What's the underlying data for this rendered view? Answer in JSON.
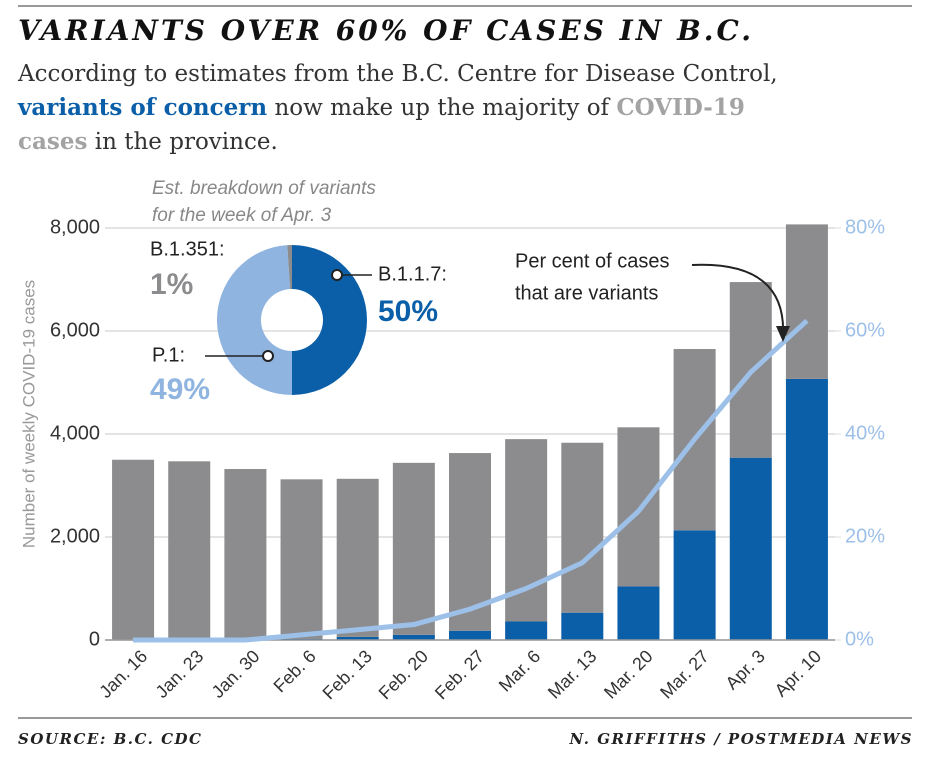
{
  "title": "VARIANTS OVER 60% OF CASES IN B.C.",
  "subtitle": [
    "According to estimates from the B.C. Centre for Disease Control,",
    "variants of concern",
    "now make up the majority of",
    "COVID-19",
    "cases",
    "in the province."
  ],
  "source": "SOURCE: B.C. CDC",
  "credit": "N. GRIFFITHS / POSTMEDIA NEWS",
  "chart_data": [
    {
      "type": "bar",
      "stacked": true,
      "grid": true,
      "y_label": "Number of weekly COVID-19 cases",
      "annotation": [
        "Per cent of cases",
        "that are variants"
      ],
      "categories": [
        "Jan. 16",
        "Jan. 23",
        "Jan. 30",
        "Feb. 6",
        "Feb. 13",
        "Feb. 20",
        "Feb. 27",
        "Mar. 6",
        "Mar. 13",
        "Mar. 20",
        "Mar. 27",
        "Apr. 3",
        "Apr. 10"
      ],
      "series": [
        {
          "color": "#0b5ea8",
          "values": [
            0,
            0,
            0,
            20,
            60,
            100,
            180,
            360,
            530,
            1040,
            2130,
            3540,
            5070
          ]
        },
        {
          "color": "#8c8c8e",
          "values": [
            3500,
            3470,
            3320,
            3100,
            3070,
            3340,
            3450,
            3540,
            3300,
            3090,
            3520,
            3410,
            3000
          ]
        },
        {
          "type": "line",
          "axis": "y2",
          "color": "#9dc0e8",
          "values": [
            0,
            0,
            0,
            1,
            2,
            3,
            6,
            10,
            15,
            25,
            39,
            52,
            62
          ]
        }
      ],
      "ylim": [
        0,
        8000
      ],
      "yticks": [
        0,
        {
          "value": 2000,
          "label": "2,000"
        },
        {
          "value": 4000,
          "label": "4,000"
        },
        {
          "value": 6000,
          "label": "6,000"
        },
        {
          "value": 8000,
          "label": "8,000"
        }
      ],
      "y2lim": [
        0,
        80
      ],
      "y2ticks": [
        {
          "value": 0,
          "label": "0%"
        },
        {
          "value": 20,
          "label": "20%"
        },
        {
          "value": 40,
          "label": "40%"
        },
        {
          "value": 60,
          "label": "60%"
        },
        {
          "value": 80,
          "label": "80%"
        }
      ]
    },
    {
      "type": "pie",
      "title": [
        "Est. breakdown of variants",
        "for the week of Apr. 3"
      ],
      "categories": [
        "B.1.1.7:",
        "P.1:",
        "B.1.351:"
      ],
      "values": [
        50,
        49,
        1
      ],
      "value_labels": [
        "50%",
        "49%",
        "1%"
      ],
      "colors": [
        "#0b5ea8",
        "#8fb4e0",
        "#8c8c8e"
      ]
    }
  ]
}
